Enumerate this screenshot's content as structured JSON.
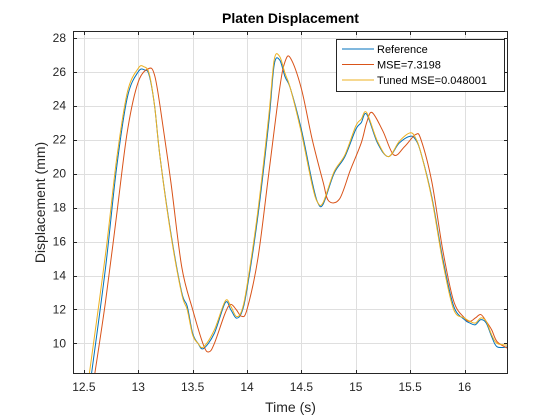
{
  "chart_data": {
    "type": "line",
    "title": "Platen Displacement",
    "xlabel": "Time (s)",
    "ylabel": "Displacement (mm)",
    "xlim": [
      12.4,
      16.4
    ],
    "ylim": [
      8.2,
      28.4
    ],
    "xticks": [
      12.5,
      13,
      13.5,
      14,
      14.5,
      15,
      15.5,
      16
    ],
    "xtick_labels": [
      "12.5",
      "13",
      "13.5",
      "14",
      "14.5",
      "15",
      "15.5",
      "16"
    ],
    "yticks": [
      10,
      12,
      14,
      16,
      18,
      20,
      22,
      24,
      26,
      28
    ],
    "ytick_labels": [
      "10",
      "12",
      "14",
      "16",
      "18",
      "20",
      "22",
      "24",
      "26",
      "28"
    ],
    "grid": true,
    "legend_location": "top-right",
    "series": [
      {
        "name": "Reference",
        "color": "#0072BD",
        "x": [
          12.57,
          12.7,
          12.8,
          12.9,
          13.0,
          13.06,
          13.1,
          13.15,
          13.2,
          13.3,
          13.4,
          13.45,
          13.5,
          13.55,
          13.6,
          13.7,
          13.8,
          13.85,
          13.9,
          13.95,
          14.0,
          14.1,
          14.2,
          14.25,
          14.3,
          14.35,
          14.4,
          14.5,
          14.6,
          14.65,
          14.7,
          14.8,
          14.9,
          15.0,
          15.05,
          15.1,
          15.2,
          15.3,
          15.4,
          15.5,
          15.55,
          15.6,
          15.7,
          15.8,
          15.9,
          16.0,
          16.05,
          16.1,
          16.15,
          16.2,
          16.25,
          16.3,
          16.4
        ],
        "y": [
          8.2,
          14.5,
          20.3,
          24.5,
          26.0,
          26.1,
          25.8,
          24.0,
          21.0,
          16.5,
          13.0,
          12.2,
          10.6,
          10.0,
          9.7,
          10.6,
          12.4,
          12.0,
          11.5,
          11.8,
          13.2,
          17.5,
          23.0,
          26.4,
          26.7,
          25.7,
          25.0,
          22.6,
          19.5,
          18.3,
          18.2,
          20.0,
          21.0,
          22.6,
          23.0,
          23.5,
          21.8,
          21.0,
          21.8,
          22.2,
          22.0,
          21.2,
          18.6,
          15.0,
          12.2,
          11.4,
          11.2,
          11.1,
          11.4,
          11.2,
          10.4,
          9.8,
          9.8
        ]
      },
      {
        "name": "MSE=7.3198",
        "color": "#D95319",
        "x": [
          12.6,
          12.7,
          12.8,
          12.9,
          13.0,
          13.1,
          13.15,
          13.2,
          13.3,
          13.4,
          13.5,
          13.6,
          13.65,
          13.7,
          13.8,
          13.85,
          13.9,
          13.95,
          14.0,
          14.1,
          14.2,
          14.3,
          14.35,
          14.4,
          14.5,
          14.6,
          14.7,
          14.75,
          14.85,
          14.95,
          15.05,
          15.1,
          15.15,
          15.25,
          15.35,
          15.45,
          15.55,
          15.6,
          15.7,
          15.8,
          15.9,
          16.0,
          16.05,
          16.1,
          16.15,
          16.2,
          16.25,
          16.3,
          16.4
        ],
        "y": [
          8.2,
          12.5,
          17.5,
          22.5,
          25.4,
          26.2,
          25.8,
          24.0,
          19.5,
          14.5,
          12.0,
          9.9,
          9.5,
          10.0,
          11.8,
          12.3,
          12.0,
          11.6,
          12.0,
          15.0,
          20.0,
          25.0,
          26.6,
          26.8,
          25.0,
          22.0,
          19.5,
          18.4,
          18.5,
          20.2,
          21.8,
          23.0,
          23.6,
          22.5,
          21.1,
          21.6,
          22.3,
          22.0,
          19.5,
          15.5,
          12.5,
          11.5,
          11.3,
          11.5,
          11.7,
          11.3,
          10.8,
          10.1,
          9.7
        ]
      },
      {
        "name": "Tuned MSE=0.048001",
        "color": "#EDB120",
        "x": [
          12.55,
          12.7,
          12.8,
          12.9,
          13.0,
          13.05,
          13.1,
          13.15,
          13.2,
          13.3,
          13.4,
          13.45,
          13.5,
          13.55,
          13.6,
          13.7,
          13.8,
          13.85,
          13.9,
          13.95,
          14.0,
          14.1,
          14.2,
          14.25,
          14.3,
          14.35,
          14.4,
          14.5,
          14.6,
          14.65,
          14.7,
          14.8,
          14.9,
          15.0,
          15.05,
          15.1,
          15.2,
          15.3,
          15.4,
          15.5,
          15.55,
          15.6,
          15.7,
          15.8,
          15.9,
          16.0,
          16.05,
          16.1,
          16.15,
          16.2,
          16.25,
          16.3,
          16.4
        ],
        "y": [
          8.2,
          15.3,
          20.8,
          24.8,
          26.2,
          26.3,
          25.9,
          24.0,
          21.0,
          16.4,
          12.9,
          12.0,
          10.5,
          10.0,
          9.8,
          10.8,
          12.5,
          12.2,
          11.6,
          11.9,
          13.4,
          17.8,
          23.4,
          26.7,
          26.9,
          25.9,
          25.0,
          22.4,
          19.3,
          18.3,
          18.3,
          20.1,
          21.1,
          22.8,
          23.2,
          23.6,
          21.9,
          21.0,
          21.9,
          22.4,
          22.1,
          21.2,
          18.5,
          14.8,
          12.0,
          11.5,
          11.3,
          11.2,
          11.5,
          11.3,
          10.5,
          10.0,
          9.9
        ]
      }
    ]
  }
}
